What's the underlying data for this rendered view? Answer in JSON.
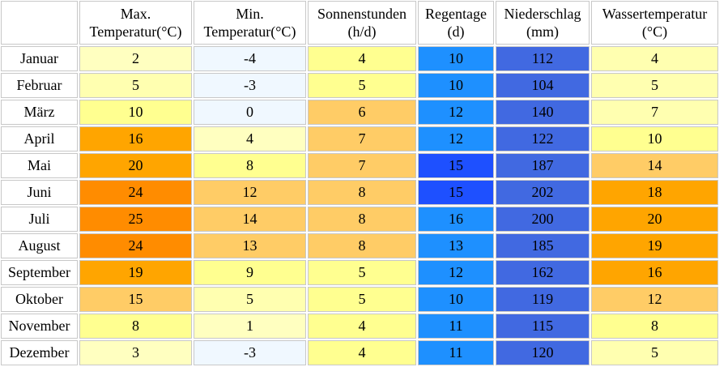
{
  "headers": [
    {
      "line1": "",
      "line2": ""
    },
    {
      "line1": "Max.",
      "line2": "Temperatur(°C)"
    },
    {
      "line1": "Min.",
      "line2": "Temperatur(°C)"
    },
    {
      "line1": "Sonnenstunden",
      "line2": "(h/d)"
    },
    {
      "line1": "Regentage",
      "line2": "(d)"
    },
    {
      "line1": "Niederschlag",
      "line2": "(mm)"
    },
    {
      "line1": "Wassertemperatur",
      "line2": "(°C)"
    }
  ],
  "rows": [
    {
      "month": "Januar",
      "max": "2",
      "min": "-4",
      "sun": "4",
      "raindays": "10",
      "precip": "112",
      "water": "4"
    },
    {
      "month": "Februar",
      "max": "5",
      "min": "-3",
      "sun": "5",
      "raindays": "10",
      "precip": "104",
      "water": "5"
    },
    {
      "month": "März",
      "max": "10",
      "min": "0",
      "sun": "6",
      "raindays": "12",
      "precip": "140",
      "water": "7"
    },
    {
      "month": "April",
      "max": "16",
      "min": "4",
      "sun": "7",
      "raindays": "12",
      "precip": "122",
      "water": "10"
    },
    {
      "month": "Mai",
      "max": "20",
      "min": "8",
      "sun": "7",
      "raindays": "15",
      "precip": "187",
      "water": "14"
    },
    {
      "month": "Juni",
      "max": "24",
      "min": "12",
      "sun": "8",
      "raindays": "15",
      "precip": "202",
      "water": "18"
    },
    {
      "month": "Juli",
      "max": "25",
      "min": "14",
      "sun": "8",
      "raindays": "16",
      "precip": "200",
      "water": "20"
    },
    {
      "month": "August",
      "max": "24",
      "min": "13",
      "sun": "8",
      "raindays": "13",
      "precip": "185",
      "water": "19"
    },
    {
      "month": "September",
      "max": "19",
      "min": "9",
      "sun": "5",
      "raindays": "12",
      "precip": "162",
      "water": "16"
    },
    {
      "month": "Oktober",
      "max": "15",
      "min": "5",
      "sun": "5",
      "raindays": "10",
      "precip": "119",
      "water": "12"
    },
    {
      "month": "November",
      "max": "8",
      "min": "1",
      "sun": "4",
      "raindays": "11",
      "precip": "115",
      "water": "8"
    },
    {
      "month": "Dezember",
      "max": "3",
      "min": "-3",
      "sun": "4",
      "raindays": "11",
      "precip": "120",
      "water": "5"
    }
  ],
  "colors": {
    "max": [
      "#ffffc0",
      "#ffffb0",
      "#ffff90",
      "#ffa500",
      "#ffa500",
      "#ff8c00",
      "#ff8c00",
      "#ff8c00",
      "#ffa500",
      "#ffcc66",
      "#ffff90",
      "#ffffc0"
    ],
    "min": [
      "#f0f8ff",
      "#f0f8ff",
      "#f0f8ff",
      "#ffffc0",
      "#ffff90",
      "#ffcc66",
      "#ffcc66",
      "#ffcc66",
      "#ffff90",
      "#ffffb0",
      "#ffffc0",
      "#f0f8ff"
    ],
    "sun": [
      "#ffff90",
      "#ffff90",
      "#ffcc66",
      "#ffcc66",
      "#ffcc66",
      "#ffcc66",
      "#ffcc66",
      "#ffcc66",
      "#ffff90",
      "#ffff90",
      "#ffff90",
      "#ffff90"
    ],
    "raindays": [
      "#1e90ff",
      "#1e90ff",
      "#1e90ff",
      "#1e90ff",
      "#1e50ff",
      "#1e50ff",
      "#1e90ff",
      "#1e90ff",
      "#1e90ff",
      "#1e90ff",
      "#1e90ff",
      "#1e90ff"
    ],
    "precip": [
      "#4169e1",
      "#4169e1",
      "#4169e1",
      "#4169e1",
      "#4169e1",
      "#4169e1",
      "#4169e1",
      "#4169e1",
      "#4169e1",
      "#4169e1",
      "#4169e1",
      "#4169e1"
    ],
    "water": [
      "#ffffb0",
      "#ffffb0",
      "#ffffb0",
      "#ffff90",
      "#ffcc66",
      "#ffa500",
      "#ffa500",
      "#ffa500",
      "#ffa500",
      "#ffcc66",
      "#ffff90",
      "#ffffb0"
    ]
  }
}
